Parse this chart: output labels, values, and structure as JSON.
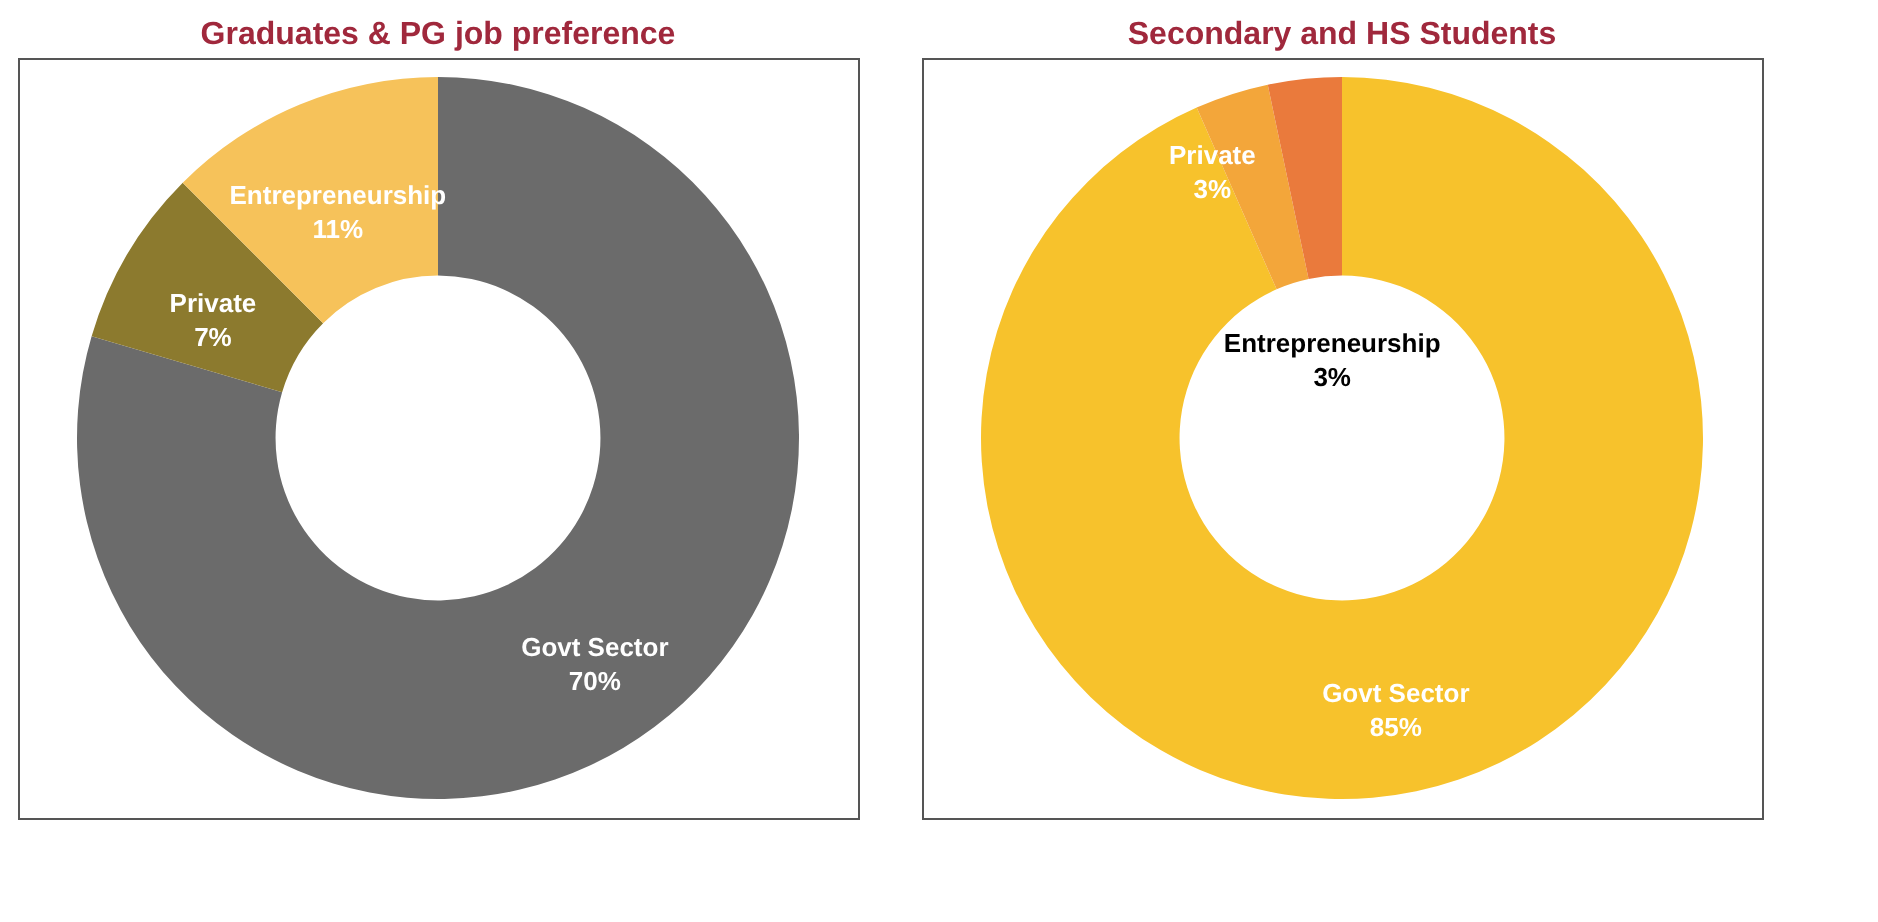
{
  "chart_data": [
    {
      "type": "donut",
      "title": "Graduates & PG job preference",
      "categories": [
        "Govt Sector",
        "Private",
        "Entrepreneurship"
      ],
      "values": [
        70,
        7,
        11
      ],
      "colors": [
        "#6b6b6b",
        "#8c7a2e",
        "#f6c25a"
      ],
      "value_labels": [
        "70%",
        "7%",
        "11%"
      ],
      "legend": false
    },
    {
      "type": "donut",
      "title": "Secondary and HS Students",
      "categories": [
        "Govt Sector",
        "Private",
        "Entrepreneurship"
      ],
      "values": [
        85,
        3,
        3
      ],
      "colors": [
        "#f7c22c",
        "#f3a63a",
        "#ea7a3c"
      ],
      "value_labels": [
        "85%",
        "3%",
        "3%"
      ],
      "legend": false
    }
  ]
}
